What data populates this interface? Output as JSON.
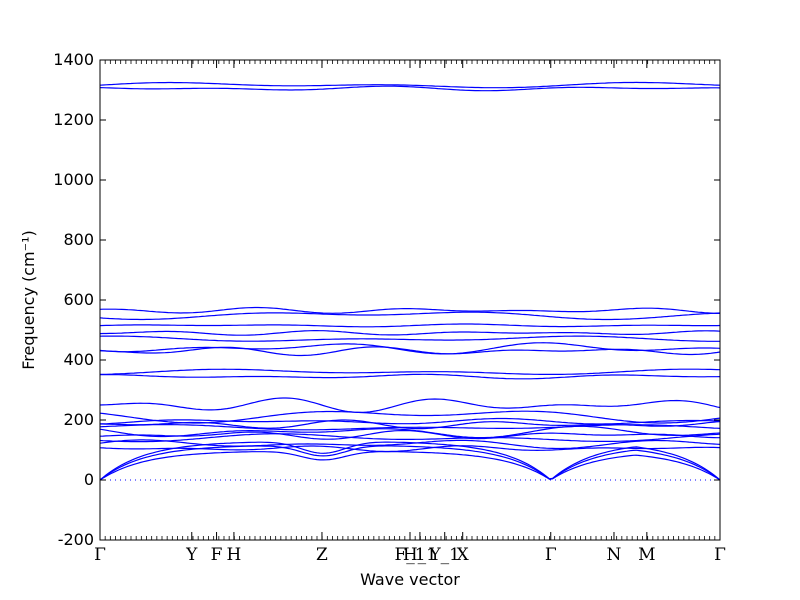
{
  "chart_data": {
    "type": "line",
    "xlabel": "Wave vector",
    "ylabel": "Frequency (cm⁻¹)",
    "ylim": [
      -200,
      1400
    ],
    "yticks": [
      -200,
      0,
      200,
      400,
      600,
      800,
      1000,
      1200,
      1400
    ],
    "kpath_labels": [
      "Γ",
      "Y",
      "F",
      "H",
      "Z",
      "F_1",
      "H_1",
      "Y_1",
      "X",
      "Γ",
      "N",
      "M",
      "Γ"
    ],
    "kpath_positions": [
      0.0,
      0.148,
      0.188,
      0.216,
      0.358,
      0.5,
      0.516,
      0.556,
      0.585,
      0.727,
      0.829,
      0.882,
      1.0
    ],
    "zero_line": 0,
    "series_color": "#0000ff",
    "acoustic_band_max": 130,
    "band_levels": [
      {
        "base": 1316,
        "amp": 10
      },
      {
        "base": 1305,
        "amp": 8
      },
      {
        "base": 565,
        "amp": 10
      },
      {
        "base": 550,
        "amp": 15
      },
      {
        "base": 515,
        "amp": 5
      },
      {
        "base": 490,
        "amp": 8
      },
      {
        "base": 470,
        "amp": 10
      },
      {
        "base": 440,
        "amp": 20
      },
      {
        "base": 430,
        "amp": 15
      },
      {
        "base": 360,
        "amp": 10
      },
      {
        "base": 345,
        "amp": 8
      },
      {
        "base": 250,
        "amp": 25
      },
      {
        "base": 215,
        "amp": 25
      },
      {
        "base": 195,
        "amp": 10
      },
      {
        "base": 185,
        "amp": 15
      },
      {
        "base": 175,
        "amp": 10
      },
      {
        "base": 160,
        "amp": 20
      },
      {
        "base": 150,
        "amp": 15
      },
      {
        "base": 140,
        "amp": 15
      },
      {
        "base": 120,
        "amp": 15
      },
      {
        "base": 105,
        "amp": 10
      }
    ]
  }
}
